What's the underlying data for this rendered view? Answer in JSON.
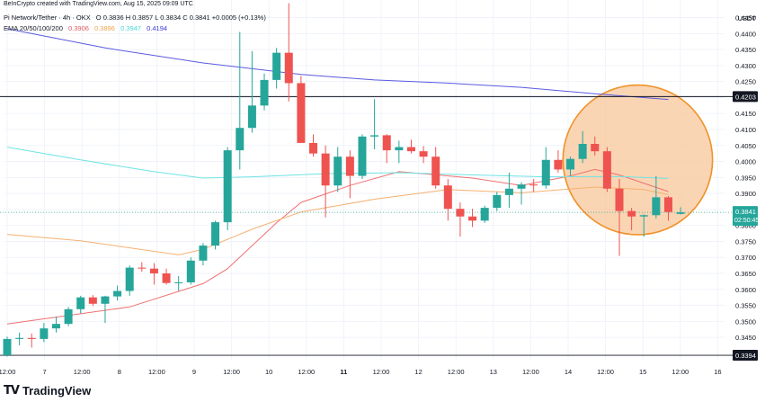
{
  "credit": "BeInCrypto created with TradingView.com, Aug 15, 2025 09:09 UTC",
  "currency": "USDT",
  "brand": {
    "name": "TradingView",
    "logo_mark": "TV"
  },
  "legend": {
    "symbol": "Pi Network/Tether · 4h · OKX",
    "ohlc_text": "O 0.3836  H 0.3857  L 0.3834  C 0.3841  +0.0005 (+0.13%)",
    "ema_title": "EMA 20/50/100/200",
    "ema_values": [
      {
        "value": "0.3906",
        "color": "#e05a5a"
      },
      {
        "value": "0.3896",
        "color": "#f0a24b"
      },
      {
        "value": "0.3947",
        "color": "#4fd8d8"
      },
      {
        "value": "0.4194",
        "color": "#3b3bd8"
      }
    ]
  },
  "chart_data": {
    "type": "candlestick",
    "interval": "4h",
    "ylim": [
      0.338,
      0.4505
    ],
    "y_ticks": [
      "0.3450",
      "0.3500",
      "0.3550",
      "0.3600",
      "0.3650",
      "0.3700",
      "0.3750",
      "0.3800",
      "0.3850",
      "0.3900",
      "0.3950",
      "0.4000",
      "0.4050",
      "0.4100",
      "0.4150",
      "0.4200",
      "0.4250",
      "0.4300",
      "0.4350",
      "0.4400",
      "0.4450"
    ],
    "x_ticks": [
      "12:00",
      "7",
      "12:00",
      "8",
      "12:00",
      "9",
      "12:00",
      "10",
      "12:00",
      "11",
      "12:00",
      "12",
      "12:00",
      "13",
      "12:00",
      "14",
      "12:00",
      "15",
      "12:00",
      "16"
    ],
    "candles": [
      {
        "o": 0.3394,
        "h": 0.3452,
        "l": 0.339,
        "c": 0.3445
      },
      {
        "o": 0.3445,
        "h": 0.3465,
        "l": 0.3425,
        "c": 0.3448
      },
      {
        "o": 0.3448,
        "h": 0.3462,
        "l": 0.3418,
        "c": 0.3445
      },
      {
        "o": 0.3445,
        "h": 0.3495,
        "l": 0.3435,
        "c": 0.3478
      },
      {
        "o": 0.3478,
        "h": 0.3515,
        "l": 0.3465,
        "c": 0.3492
      },
      {
        "o": 0.3492,
        "h": 0.3545,
        "l": 0.3485,
        "c": 0.3538
      },
      {
        "o": 0.3538,
        "h": 0.358,
        "l": 0.3525,
        "c": 0.3575
      },
      {
        "o": 0.3575,
        "h": 0.3582,
        "l": 0.3548,
        "c": 0.3555
      },
      {
        "o": 0.3555,
        "h": 0.358,
        "l": 0.3495,
        "c": 0.3578
      },
      {
        "o": 0.3578,
        "h": 0.3612,
        "l": 0.3565,
        "c": 0.3595
      },
      {
        "o": 0.3595,
        "h": 0.3675,
        "l": 0.358,
        "c": 0.3668
      },
      {
        "o": 0.3668,
        "h": 0.3685,
        "l": 0.3655,
        "c": 0.3665
      },
      {
        "o": 0.3665,
        "h": 0.3682,
        "l": 0.3615,
        "c": 0.365
      },
      {
        "o": 0.365,
        "h": 0.3665,
        "l": 0.3615,
        "c": 0.362
      },
      {
        "o": 0.362,
        "h": 0.3642,
        "l": 0.3595,
        "c": 0.3622
      },
      {
        "o": 0.3622,
        "h": 0.37,
        "l": 0.3615,
        "c": 0.369
      },
      {
        "o": 0.369,
        "h": 0.3745,
        "l": 0.3675,
        "c": 0.3737
      },
      {
        "o": 0.3737,
        "h": 0.3815,
        "l": 0.3725,
        "c": 0.381
      },
      {
        "o": 0.381,
        "h": 0.4045,
        "l": 0.3785,
        "c": 0.4035
      },
      {
        "o": 0.4035,
        "h": 0.4405,
        "l": 0.3975,
        "c": 0.4105
      },
      {
        "o": 0.4105,
        "h": 0.4345,
        "l": 0.409,
        "c": 0.4175
      },
      {
        "o": 0.4175,
        "h": 0.4275,
        "l": 0.416,
        "c": 0.4255
      },
      {
        "o": 0.4255,
        "h": 0.4355,
        "l": 0.4228,
        "c": 0.434
      },
      {
        "o": 0.434,
        "h": 0.4495,
        "l": 0.4188,
        "c": 0.4245
      },
      {
        "o": 0.4245,
        "h": 0.4268,
        "l": 0.4065,
        "c": 0.4058
      },
      {
        "o": 0.4058,
        "h": 0.4085,
        "l": 0.4015,
        "c": 0.4025
      },
      {
        "o": 0.4025,
        "h": 0.405,
        "l": 0.3825,
        "c": 0.3925
      },
      {
        "o": 0.3925,
        "h": 0.4045,
        "l": 0.3905,
        "c": 0.4015
      },
      {
        "o": 0.4015,
        "h": 0.4035,
        "l": 0.3885,
        "c": 0.3955
      },
      {
        "o": 0.3955,
        "h": 0.4085,
        "l": 0.3945,
        "c": 0.4078
      },
      {
        "o": 0.4078,
        "h": 0.4195,
        "l": 0.4038,
        "c": 0.4082
      },
      {
        "o": 0.4082,
        "h": 0.4085,
        "l": 0.3995,
        "c": 0.4035
      },
      {
        "o": 0.4035,
        "h": 0.4065,
        "l": 0.3995,
        "c": 0.4045
      },
      {
        "o": 0.4045,
        "h": 0.4068,
        "l": 0.4025,
        "c": 0.4032
      },
      {
        "o": 0.4032,
        "h": 0.4048,
        "l": 0.3995,
        "c": 0.4015
      },
      {
        "o": 0.4015,
        "h": 0.4045,
        "l": 0.3915,
        "c": 0.3925
      },
      {
        "o": 0.3925,
        "h": 0.3945,
        "l": 0.3815,
        "c": 0.3852
      },
      {
        "o": 0.3852,
        "h": 0.3872,
        "l": 0.3765,
        "c": 0.3828
      },
      {
        "o": 0.3828,
        "h": 0.3852,
        "l": 0.3795,
        "c": 0.3815
      },
      {
        "o": 0.3815,
        "h": 0.3862,
        "l": 0.3808,
        "c": 0.3855
      },
      {
        "o": 0.3855,
        "h": 0.3905,
        "l": 0.3845,
        "c": 0.3895
      },
      {
        "o": 0.3895,
        "h": 0.3965,
        "l": 0.3855,
        "c": 0.3915
      },
      {
        "o": 0.3915,
        "h": 0.3935,
        "l": 0.3865,
        "c": 0.3928
      },
      {
        "o": 0.3928,
        "h": 0.3945,
        "l": 0.3905,
        "c": 0.3925
      },
      {
        "o": 0.3925,
        "h": 0.4045,
        "l": 0.3915,
        "c": 0.4005
      },
      {
        "o": 0.4005,
        "h": 0.4035,
        "l": 0.3965,
        "c": 0.3975
      },
      {
        "o": 0.3975,
        "h": 0.4015,
        "l": 0.3955,
        "c": 0.4008
      },
      {
        "o": 0.4008,
        "h": 0.4095,
        "l": 0.3995,
        "c": 0.4055
      },
      {
        "o": 0.4055,
        "h": 0.4078,
        "l": 0.4018,
        "c": 0.4032
      },
      {
        "o": 0.4032,
        "h": 0.4045,
        "l": 0.3905,
        "c": 0.3915
      },
      {
        "o": 0.3915,
        "h": 0.3945,
        "l": 0.3705,
        "c": 0.3845
      },
      {
        "o": 0.3845,
        "h": 0.3855,
        "l": 0.3785,
        "c": 0.3828
      },
      {
        "o": 0.3828,
        "h": 0.3835,
        "l": 0.3765,
        "c": 0.3832
      },
      {
        "o": 0.3832,
        "h": 0.3955,
        "l": 0.3822,
        "c": 0.3888
      },
      {
        "o": 0.3888,
        "h": 0.3892,
        "l": 0.3815,
        "c": 0.3842
      },
      {
        "o": 0.3836,
        "h": 0.3857,
        "l": 0.3834,
        "c": 0.3841
      }
    ],
    "ema_series": [
      {
        "name": "EMA 20",
        "color": "#f07070",
        "points": [
          [
            0,
            0.3492
          ],
          [
            10,
            0.3545
          ],
          [
            16,
            0.3618
          ],
          [
            18,
            0.3665
          ],
          [
            22,
            0.3808
          ],
          [
            24,
            0.3872
          ],
          [
            28,
            0.3925
          ],
          [
            32,
            0.3968
          ],
          [
            38,
            0.3948
          ],
          [
            42,
            0.3925
          ],
          [
            46,
            0.3955
          ],
          [
            48,
            0.3975
          ],
          [
            50,
            0.3958
          ],
          [
            54,
            0.3906
          ]
        ]
      },
      {
        "name": "EMA 50",
        "color": "#f7b070",
        "points": [
          [
            0,
            0.3772
          ],
          [
            6,
            0.3752
          ],
          [
            14,
            0.3708
          ],
          [
            16,
            0.3725
          ],
          [
            20,
            0.3788
          ],
          [
            24,
            0.3842
          ],
          [
            30,
            0.3882
          ],
          [
            36,
            0.3912
          ],
          [
            42,
            0.3902
          ],
          [
            48,
            0.392
          ],
          [
            52,
            0.3912
          ],
          [
            54,
            0.3896
          ]
        ]
      },
      {
        "name": "EMA 100",
        "color": "#6fe3e3",
        "points": [
          [
            0,
            0.4045
          ],
          [
            6,
            0.4005
          ],
          [
            12,
            0.3968
          ],
          [
            16,
            0.3948
          ],
          [
            20,
            0.3952
          ],
          [
            26,
            0.3962
          ],
          [
            32,
            0.3965
          ],
          [
            38,
            0.3958
          ],
          [
            44,
            0.3952
          ],
          [
            50,
            0.3953
          ],
          [
            54,
            0.3947
          ]
        ]
      },
      {
        "name": "EMA 200",
        "color": "#5a5ae0",
        "points": [
          [
            0,
            0.4415
          ],
          [
            8,
            0.4355
          ],
          [
            16,
            0.4308
          ],
          [
            24,
            0.4272
          ],
          [
            30,
            0.4255
          ],
          [
            36,
            0.4245
          ],
          [
            42,
            0.4232
          ],
          [
            48,
            0.4212
          ],
          [
            54,
            0.4194
          ]
        ]
      }
    ],
    "horizontal_lines": [
      {
        "value": 0.4203,
        "label": "0.4203",
        "color": "#131722",
        "label_bg": "#131722"
      },
      {
        "value": 0.3394,
        "label": "0.3394",
        "color": "#131722",
        "label_bg": "#131722"
      }
    ],
    "last_price": {
      "value": 0.3841,
      "label": "0.3841",
      "countdown": "02:50:45",
      "color": "#26a69a"
    },
    "highlight": {
      "type": "circle",
      "fill": "#f8c79b",
      "stroke": "#ef9227",
      "center_index": 51.5,
      "center_value": 0.4005,
      "radius_value": 0.0225
    },
    "colors": {
      "up": "#26a69a",
      "down": "#ef5350",
      "grid": "#f0f3fa",
      "axis_text": "#131722"
    }
  }
}
